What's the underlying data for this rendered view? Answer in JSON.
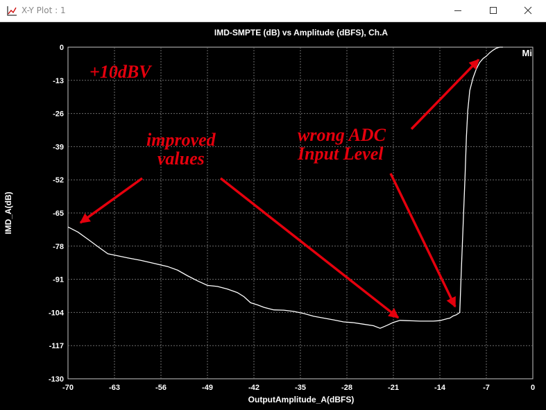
{
  "window": {
    "title": "X-Y Plot : 1",
    "icon": "xy-plot-icon",
    "controls": [
      "minimize-icon",
      "maximize-icon",
      "close-icon"
    ]
  },
  "chart_data": {
    "type": "line",
    "title": "IMD-SMPTE (dB) vs Amplitude (dBFS), Ch.A",
    "xlabel": "OutputAmplitude_A(dBFS)",
    "ylabel": "IMD_A(dB)",
    "xlim": [
      -70,
      0
    ],
    "ylim": [
      -130,
      0
    ],
    "xticks": [
      "-70",
      "-63",
      "-56",
      "-49",
      "-42",
      "-35",
      "-28",
      "-21",
      "-14",
      "-7",
      "0"
    ],
    "yticks": [
      "0",
      "-13",
      "-26",
      "-39",
      "-52",
      "-65",
      "-78",
      "-91",
      "-104",
      "-117",
      "-130"
    ],
    "grid": true,
    "legend_tag": "Mi",
    "background": "#000000",
    "line_color": "#ffffff",
    "series": [
      {
        "x": [
          -70,
          -68.5,
          -67,
          -65.5,
          -64,
          -62.5,
          -61,
          -59,
          -57,
          -55,
          -53.5,
          -52,
          -50.5,
          -49,
          -47.5,
          -46,
          -44.5,
          -43.5,
          -42.5,
          -41.5,
          -40.5,
          -39,
          -37.5,
          -36,
          -34.5,
          -33,
          -31.5,
          -30,
          -28.5,
          -27,
          -25.5,
          -24,
          -23,
          -22,
          -21,
          -20,
          -19,
          -18,
          -17,
          -16,
          -15,
          -14,
          -13,
          -12.5,
          -12,
          -11.5,
          -11,
          -10.8,
          -10.5,
          -10.2,
          -10.0,
          -9.8,
          -9.5,
          -9.0,
          -8.5,
          -8.0,
          -7.5,
          -7.0,
          -6.5,
          -6.0,
          -5.5,
          -5.0,
          -4.5
        ],
        "y": [
          -70.5,
          -72.5,
          -75.3,
          -78.2,
          -81.0,
          -81.8,
          -82.6,
          -83.6,
          -84.8,
          -86.0,
          -87.4,
          -89.6,
          -91.6,
          -93.4,
          -93.8,
          -94.8,
          -96.2,
          -97.8,
          -100.2,
          -101.0,
          -102.0,
          -103.0,
          -103.1,
          -103.6,
          -104.4,
          -105.5,
          -106.2,
          -106.9,
          -107.7,
          -108.0,
          -108.6,
          -109.2,
          -110.2,
          -109.1,
          -107.9,
          -107.1,
          -107.2,
          -107.3,
          -107.4,
          -107.4,
          -107.4,
          -107.2,
          -106.5,
          -106.2,
          -105.4,
          -104.9,
          -104.0,
          -90.0,
          -70.0,
          -50.0,
          -35.0,
          -25.0,
          -17.0,
          -12.0,
          -8.5,
          -6.0,
          -4.5,
          -3.5,
          -2.2,
          -1.2,
          -0.4,
          0.0,
          0.0
        ]
      }
    ],
    "annotations": [
      {
        "label": "+10dBV"
      },
      {
        "label": [
          "improved",
          "values"
        ]
      },
      {
        "label": [
          "wrong ADC",
          "Input Level"
        ]
      }
    ],
    "annotation_color": "#e5000d"
  }
}
